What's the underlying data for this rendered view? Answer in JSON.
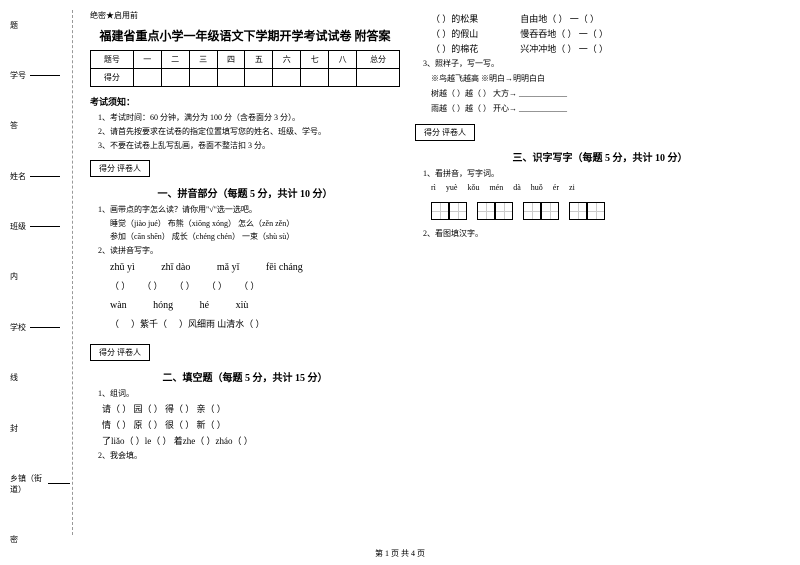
{
  "side": {
    "xuehao": "学号",
    "xingming": "姓名",
    "banji": "班级",
    "xuexiao": "学校",
    "xiangzhen": "乡镇（街道）",
    "nei": "内",
    "ti": "题",
    "da": "答",
    "feng": "封",
    "mi": "密",
    "xian": "线"
  },
  "header": {
    "secret": "绝密★启用前",
    "title": "福建省重点小学一年级语文下学期开学考试试卷 附答案",
    "cols": [
      "题号",
      "一",
      "二",
      "三",
      "四",
      "五",
      "六",
      "七",
      "八",
      "总分"
    ],
    "defen": "得分"
  },
  "notice": {
    "title": "考试须知：",
    "i1": "1、考试时间：60 分钟，满分为 100 分（含卷面分 3 分）。",
    "i2": "2、请首先按要求在试卷的指定位置填写您的姓名、班级、学号。",
    "i3": "3、不要在试卷上乱写乱画，卷面不整洁扣 3 分。"
  },
  "scorebox": "得分  评卷人",
  "sec1": {
    "title": "一、拼音部分（每题 5 分，共计 10 分）",
    "q1": "1、画带点的字怎么读？请你用\"√\"选一选吧。",
    "q1a": "睡觉（jiào  jué）    布熊（xiōng  xóng）    怎么（zěn  zěn）",
    "q1b": "参加（cān  shēn）    成长（chéng  chén）    一束（shù  sù）",
    "q2": "2、读拼音写字。",
    "p1a": "zhǔ yì",
    "p1b": "zhī dào",
    "p1c": "mǎ yǐ",
    "p1d": "fēi cháng",
    "p2a": "wàn",
    "p2b": "hóng",
    "p2c": "hé",
    "p2d": "xiù",
    "pr1_after": "）紫千（",
    "pr1_end": "）风细雨    山清水（    ）"
  },
  "sec2": {
    "title": "二、填空题（每题 5 分，共计 15 分）",
    "q1": "1、组词。",
    "r1": "请（    ）    园（    ）    得（    ）    亲（    ）",
    "r2": "情（    ）    原（    ）    很（    ）    新（    ）",
    "r3": "了liǎo（    ）le（    ）    着zhe（    ）zháo（    ）",
    "q2": "2、我会填。"
  },
  "right": {
    "items": [
      {
        "blank": "（            ）的松果",
        "right": "自由地（            ）    一（    ）"
      },
      {
        "blank": "（            ）的假山",
        "right": "慢吞吞地（            ）    一（    ）"
      },
      {
        "blank": "（            ）的棉花",
        "right": "兴冲冲地（            ）    一（    ）"
      }
    ],
    "q3": "3、照样子，写一写。",
    "ex": "※鸟越飞越高                ※明白→明明白白",
    "l1": "树越（    ）越（    ）        大方→ ____________",
    "l2": "雨越（    ）越（    ）        开心→ ____________"
  },
  "sec3": {
    "title": "三、识字写字（每题 5 分，共计 10 分）",
    "q1": "1、看拼音，写字词。",
    "labels": [
      "rì",
      "yuè",
      "kǒu",
      "mén",
      "dà",
      "huǒ",
      "ér",
      "zi"
    ],
    "q2": "2、看图填汉字。"
  },
  "footer": "第 1 页 共 4 页"
}
